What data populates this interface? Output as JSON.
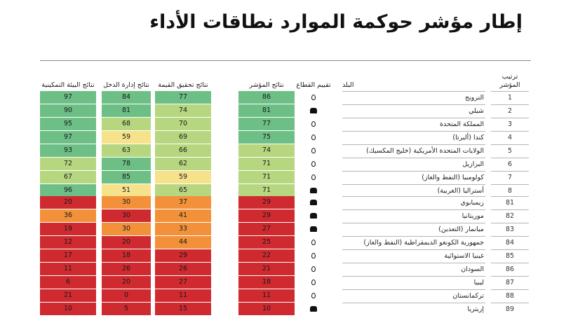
{
  "title": "إطار مؤشر حوكمة الموارد نطاقات الأداء",
  "columns": {
    "rank": "ترتيب المؤشر",
    "country": "البلد",
    "sector": "تقييم القطاع",
    "result": "نتائج المؤشر",
    "value": "نتائج تحقيق القيمة",
    "revenue": "نتائج إدارة الدخل",
    "enabling": "نتائج البيئة التمكينية"
  },
  "colors": {
    "good": "#6dbf86",
    "satisfactory": "#b6d77f",
    "weak": "#f6e28b",
    "poor": "#f2913a",
    "failing": "#cf2a2f"
  },
  "icons": {
    "oil": "drop-icon",
    "mining": "mine-cart-icon"
  },
  "rows": [
    {
      "rank": "1",
      "country": "النرويج",
      "sector": "oil",
      "result": 86,
      "value": 77,
      "revenue": 84,
      "enabling": 97,
      "rc": "good",
      "vc": "good",
      "evc": "good",
      "enc": "good"
    },
    {
      "rank": "2",
      "country": "شيلي",
      "sector": "mining",
      "result": 81,
      "value": 74,
      "revenue": 81,
      "enabling": 90,
      "rc": "good",
      "vc": "satisfactory",
      "evc": "good",
      "enc": "good"
    },
    {
      "rank": "3",
      "country": "المملكة المتحدة",
      "sector": "oil",
      "result": 77,
      "value": 70,
      "revenue": 68,
      "enabling": 95,
      "rc": "good",
      "vc": "satisfactory",
      "evc": "satisfactory",
      "enc": "good"
    },
    {
      "rank": "4",
      "country": "كندا (ألبرتا)",
      "sector": "oil",
      "result": 75,
      "value": 69,
      "revenue": 59,
      "enabling": 97,
      "rc": "good",
      "vc": "satisfactory",
      "evc": "weak",
      "enc": "good"
    },
    {
      "rank": "5",
      "country": "الولايات المتحدة الأمريكية (خليج المكسيك)",
      "sector": "oil",
      "result": 74,
      "value": 66,
      "revenue": 63,
      "enabling": 93,
      "rc": "satisfactory",
      "vc": "satisfactory",
      "evc": "satisfactory",
      "enc": "good"
    },
    {
      "rank": "6",
      "country": "البرازيل",
      "sector": "oil",
      "result": 71,
      "value": 62,
      "revenue": 78,
      "enabling": 72,
      "rc": "satisfactory",
      "vc": "satisfactory",
      "evc": "good",
      "enc": "satisfactory"
    },
    {
      "rank": "7",
      "country": "كولومبيا (النفط والغاز)",
      "sector": "oil",
      "result": 71,
      "value": 59,
      "revenue": 85,
      "enabling": 67,
      "rc": "satisfactory",
      "vc": "weak",
      "evc": "good",
      "enc": "satisfactory"
    },
    {
      "rank": "8",
      "country": "أستراليا (الغربية)",
      "sector": "mining",
      "result": 71,
      "value": 65,
      "revenue": 51,
      "enabling": 96,
      "rc": "satisfactory",
      "vc": "satisfactory",
      "evc": "weak",
      "enc": "good"
    },
    {
      "rank": "81",
      "country": "زيمبابوي",
      "sector": "mining",
      "result": 29,
      "value": 37,
      "revenue": 30,
      "enabling": 20,
      "rc": "failing",
      "vc": "poor",
      "evc": "poor",
      "enc": "failing"
    },
    {
      "rank": "82",
      "country": "موريتانيا",
      "sector": "mining",
      "result": 29,
      "value": 41,
      "revenue": 30,
      "enabling": 36,
      "rc": "failing",
      "vc": "poor",
      "evc": "failing",
      "enc": "poor"
    },
    {
      "rank": "83",
      "country": "ميانمار (التعدين)",
      "sector": "mining",
      "result": 27,
      "value": 33,
      "revenue": 30,
      "enabling": 19,
      "rc": "failing",
      "vc": "poor",
      "evc": "poor",
      "enc": "failing"
    },
    {
      "rank": "84",
      "country": "جمهورية الكونغو الديمقراطية (النفط والغاز)",
      "sector": "oil",
      "result": 25,
      "value": 44,
      "revenue": 20,
      "enabling": 12,
      "rc": "failing",
      "vc": "poor",
      "evc": "failing",
      "enc": "failing"
    },
    {
      "rank": "85",
      "country": "غينيا الاستوائية",
      "sector": "oil",
      "result": 22,
      "value": 29,
      "revenue": 18,
      "enabling": 17,
      "rc": "failing",
      "vc": "failing",
      "evc": "failing",
      "enc": "failing"
    },
    {
      "rank": "86",
      "country": "السودان",
      "sector": "oil",
      "result": 21,
      "value": 26,
      "revenue": 26,
      "enabling": 11,
      "rc": "failing",
      "vc": "failing",
      "evc": "failing",
      "enc": "failing"
    },
    {
      "rank": "87",
      "country": "ليبيا",
      "sector": "oil",
      "result": 18,
      "value": 27,
      "revenue": 20,
      "enabling": 6,
      "rc": "failing",
      "vc": "failing",
      "evc": "failing",
      "enc": "failing"
    },
    {
      "rank": "88",
      "country": "تركمانستان",
      "sector": "oil",
      "result": 11,
      "value": 11,
      "revenue": 0,
      "enabling": 21,
      "rc": "failing",
      "vc": "failing",
      "evc": "failing",
      "enc": "failing"
    },
    {
      "rank": "89",
      "country": "إريتريا",
      "sector": "mining",
      "result": 10,
      "value": 15,
      "revenue": 5,
      "enabling": 10,
      "rc": "failing",
      "vc": "failing",
      "evc": "failing",
      "enc": "failing"
    }
  ]
}
